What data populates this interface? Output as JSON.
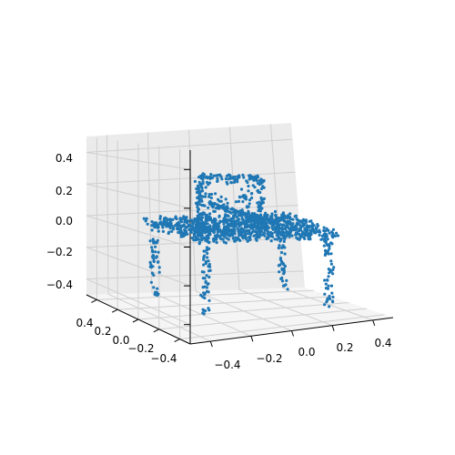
{
  "chart_data": {
    "type": "scatter",
    "projection": "3d",
    "title": "",
    "xlabel": "",
    "ylabel": "",
    "zlabel": "",
    "grid": true,
    "marker_color": "#1f77b4",
    "pane_color": "#f2f2f2",
    "xlim": [
      -0.5,
      0.5
    ],
    "ylim": [
      -0.5,
      0.5
    ],
    "zlim": [
      -0.5,
      0.5
    ],
    "x_ticks": [
      "−0.4",
      "−0.2",
      "0.0",
      "0.2",
      "0.4"
    ],
    "y_ticks": [
      "0.4",
      "0.2",
      "0.0",
      "−0.2",
      "−0.4"
    ],
    "z_ticks": [
      "0.4",
      "0.2",
      "0.0",
      "−0.2",
      "−0.4"
    ],
    "series": [
      {
        "shape": "chair",
        "seat": {
          "x": [
            -0.35,
            0.35
          ],
          "y": [
            -0.3,
            0.3
          ],
          "z": 0.0
        },
        "backrest": {
          "x": [
            -0.35,
            -0.05
          ],
          "y": -0.3,
          "z": [
            0.0,
            0.35
          ]
        },
        "legs": [
          {
            "x": -0.3,
            "y": -0.25,
            "z": [
              -0.45,
              0.0
            ]
          },
          {
            "x": 0.3,
            "y": -0.25,
            "z": [
              -0.45,
              0.0
            ]
          },
          {
            "x": -0.3,
            "y": 0.25,
            "z": [
              -0.45,
              0.0
            ]
          },
          {
            "x": 0.3,
            "y": 0.25,
            "z": [
              -0.45,
              0.0
            ]
          }
        ]
      }
    ]
  }
}
